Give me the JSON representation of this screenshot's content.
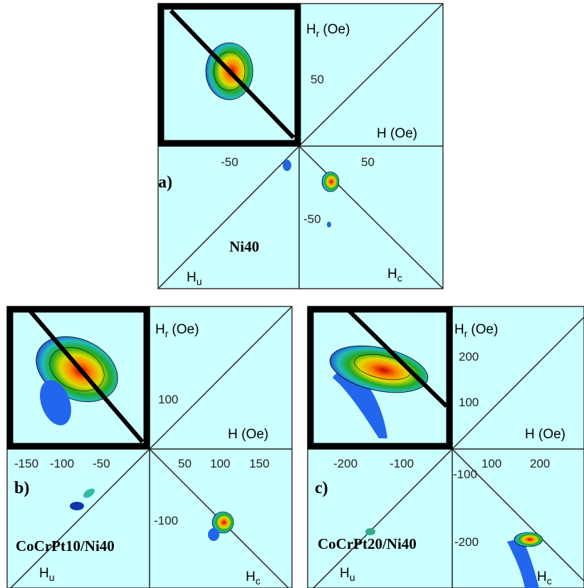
{
  "panels": [
    {
      "label": "a)",
      "sample": "Ni40",
      "hr_axis": {
        "symbol": "H",
        "sub": "r",
        "unit": "(Oe)"
      },
      "h_axis": "H (Oe)",
      "hu": {
        "symbol": "H",
        "sub": "u"
      },
      "hc": {
        "symbol": "H",
        "sub": "c"
      },
      "hr_ticks": [
        "50"
      ],
      "hu_ticks": [
        "-50"
      ],
      "hc_ticks": [
        "50"
      ],
      "hc_vert_ticks": [
        "-50"
      ]
    },
    {
      "label": "b)",
      "sample": "CoCrPt10/Ni40",
      "hr_axis": {
        "symbol": "H",
        "sub": "r",
        "unit": "(Oe)"
      },
      "h_axis": "H (Oe)",
      "hu": {
        "symbol": "H",
        "sub": "u"
      },
      "hc": {
        "symbol": "H",
        "sub": "c"
      },
      "hr_ticks": [
        "100"
      ],
      "hu_ticks": [
        "-150",
        "-100",
        "-50"
      ],
      "hc_ticks": [
        "50",
        "100",
        "150"
      ],
      "hc_vert_ticks": [
        "-100"
      ]
    },
    {
      "label": "c)",
      "sample": "CoCrPt20/Ni40",
      "hr_axis": {
        "symbol": "H",
        "sub": "r",
        "unit": "(Oe)"
      },
      "h_axis": "H (Oe)",
      "hu": {
        "symbol": "H",
        "sub": "u"
      },
      "hc": {
        "symbol": "H",
        "sub": "c"
      },
      "hr_ticks": [
        "200",
        "100"
      ],
      "hu_ticks": [
        "-200",
        "-100"
      ],
      "hc_ticks": [
        "100",
        "200"
      ],
      "hc_vert_ticks": [
        "-100",
        "-200"
      ]
    }
  ]
}
